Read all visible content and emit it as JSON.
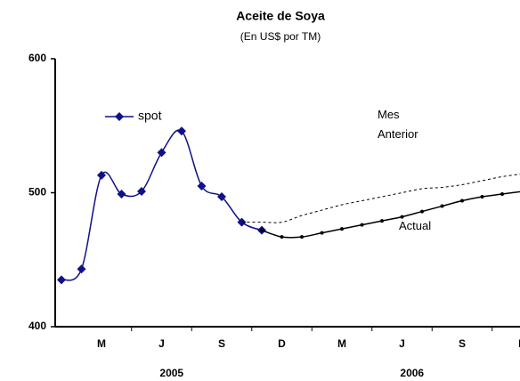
{
  "chart_data": {
    "type": "line",
    "title": "Aceite de Soya",
    "subtitle": "(En US$ por TM)",
    "categories": [
      null,
      null,
      "M",
      null,
      null,
      "J",
      null,
      null,
      "S",
      null,
      null,
      "D",
      null,
      null,
      "M",
      null,
      null,
      "J",
      null,
      null,
      "S",
      null,
      null,
      "D"
    ],
    "year_labels": [
      "2005",
      "2006"
    ],
    "ylim": [
      400,
      600
    ],
    "yticks": [
      400,
      500,
      600
    ],
    "legend": "upper left",
    "series": [
      {
        "name": "spot",
        "color": "#10108a",
        "style": "solid",
        "marker": "diamond",
        "values": [
          435,
          443,
          513,
          499,
          501,
          530,
          546,
          505,
          497,
          478,
          472,
          null,
          null,
          null,
          null,
          null,
          null,
          null,
          null,
          null,
          null,
          null,
          null,
          null
        ]
      },
      {
        "name": "Mes Anterior",
        "color": "#000000",
        "style": "dashed",
        "marker": "none",
        "values": [
          null,
          null,
          null,
          null,
          null,
          null,
          null,
          null,
          null,
          478,
          478,
          478,
          483,
          487,
          491,
          494,
          497,
          500,
          503,
          504,
          506,
          509,
          512,
          514
        ]
      },
      {
        "name": "Actual",
        "color": "#000000",
        "style": "solid",
        "marker": "dot",
        "values": [
          null,
          null,
          null,
          null,
          null,
          null,
          null,
          null,
          null,
          null,
          472,
          467,
          467,
          470,
          473,
          476,
          479,
          482,
          486,
          490,
          494,
          497,
          499,
          501
        ]
      }
    ]
  }
}
